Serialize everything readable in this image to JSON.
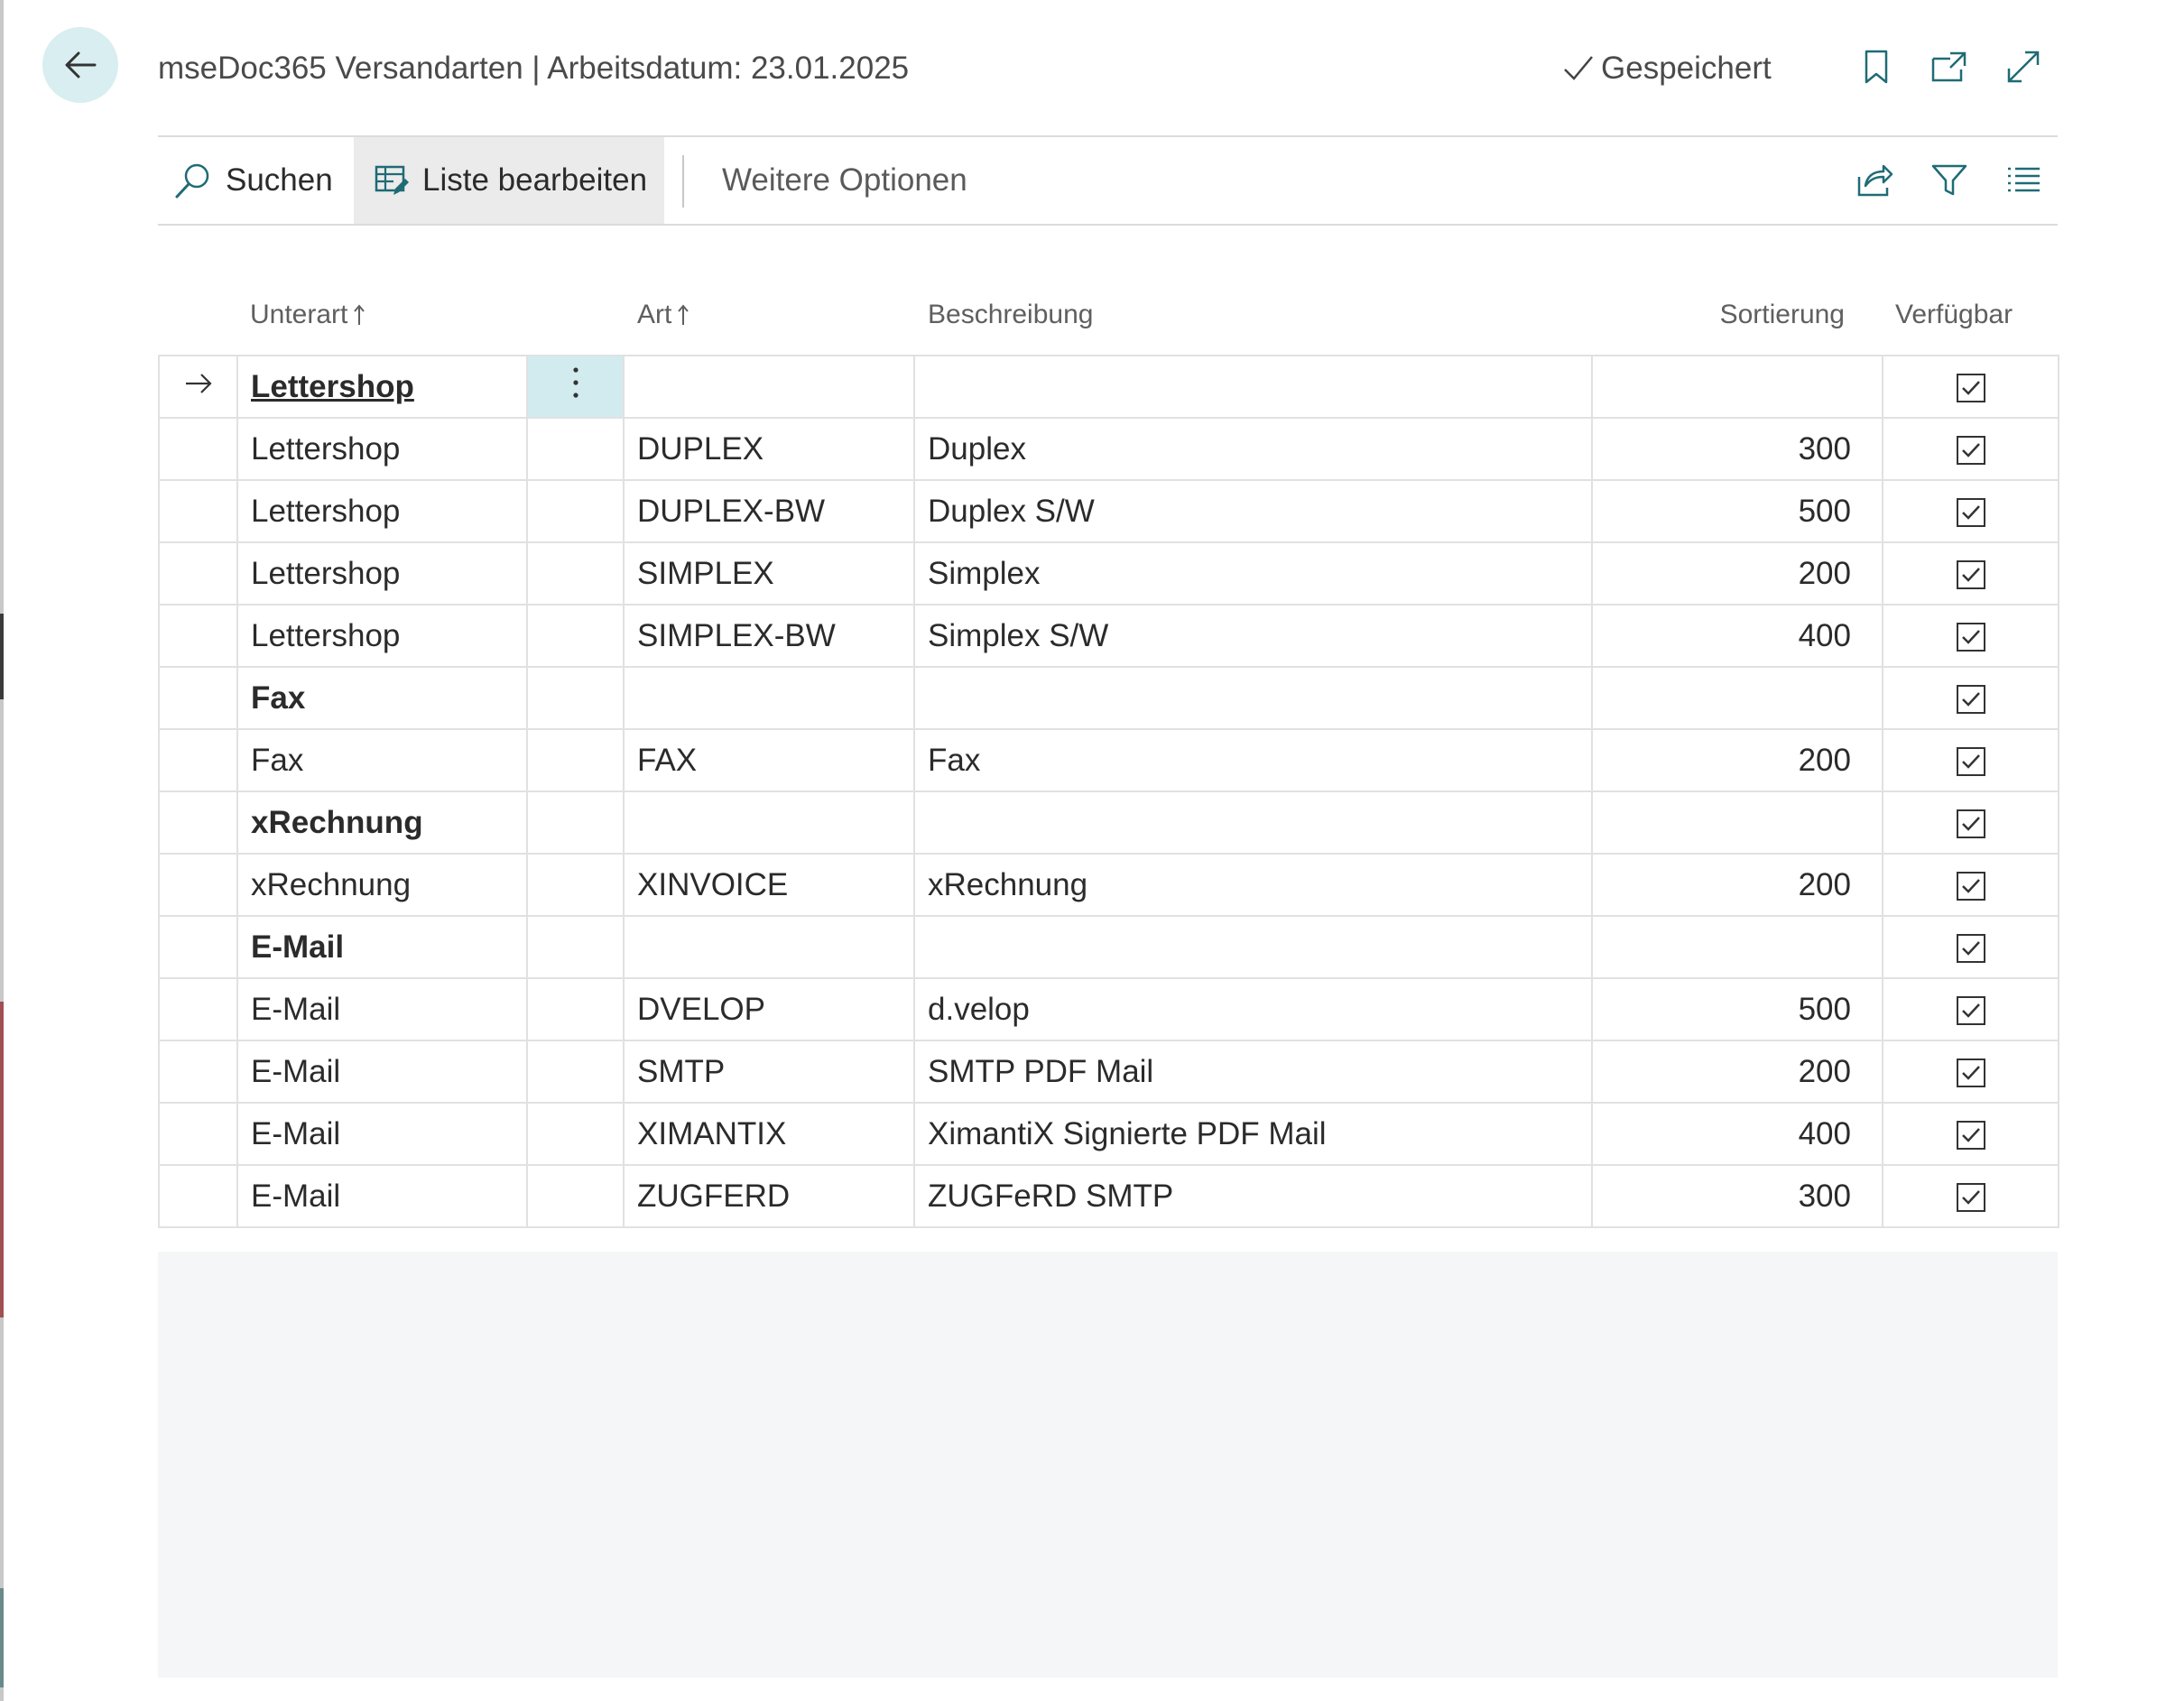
{
  "header": {
    "title": "mseDoc365 Versandarten | Arbeitsdatum: 23.01.2025",
    "saved_label": "Gespeichert",
    "icons": [
      "back-arrow-icon",
      "check-icon",
      "bookmark-icon",
      "open-new-window-icon",
      "expand-icon"
    ]
  },
  "actions": {
    "search_label": "Suchen",
    "edit_list_label": "Liste bearbeiten",
    "more_options_label": "Weitere Optionen",
    "icons": [
      "search-icon",
      "edit-list-icon",
      "share-icon",
      "filter-icon",
      "list-view-icon"
    ]
  },
  "columns": {
    "subtype": "Unterart",
    "type": "Art",
    "description": "Beschreibung",
    "sorting": "Sortierung",
    "available": "Verfügbar"
  },
  "rows": [
    {
      "subtype": "Lettershop",
      "type": "",
      "description": "",
      "sorting": "",
      "available": true,
      "group": true,
      "active": true
    },
    {
      "subtype": "Lettershop",
      "type": "DUPLEX",
      "description": "Duplex",
      "sorting": "300",
      "available": true
    },
    {
      "subtype": "Lettershop",
      "type": "DUPLEX-BW",
      "description": "Duplex S/W",
      "sorting": "500",
      "available": true
    },
    {
      "subtype": "Lettershop",
      "type": "SIMPLEX",
      "description": "Simplex",
      "sorting": "200",
      "available": true
    },
    {
      "subtype": "Lettershop",
      "type": "SIMPLEX-BW",
      "description": "Simplex S/W",
      "sorting": "400",
      "available": true
    },
    {
      "subtype": "Fax",
      "type": "",
      "description": "",
      "sorting": "",
      "available": true,
      "group": true
    },
    {
      "subtype": "Fax",
      "type": "FAX",
      "description": "Fax",
      "sorting": "200",
      "available": true
    },
    {
      "subtype": "xRechnung",
      "type": "",
      "description": "",
      "sorting": "",
      "available": true,
      "group": true
    },
    {
      "subtype": "xRechnung",
      "type": "XINVOICE",
      "description": "xRechnung",
      "sorting": "200",
      "available": true
    },
    {
      "subtype": "E-Mail",
      "type": "",
      "description": "",
      "sorting": "",
      "available": true,
      "group": true
    },
    {
      "subtype": "E-Mail",
      "type": "DVELOP",
      "description": "d.velop",
      "sorting": "500",
      "available": true
    },
    {
      "subtype": "E-Mail",
      "type": "SMTP",
      "description": "SMTP PDF Mail",
      "sorting": "200",
      "available": true
    },
    {
      "subtype": "E-Mail",
      "type": "XIMANTIX",
      "description": "XimantiX Signierte PDF Mail",
      "sorting": "400",
      "available": true
    },
    {
      "subtype": "E-Mail",
      "type": "ZUGFERD",
      "description": "ZUGFeRD SMTP",
      "sorting": "300",
      "available": true
    }
  ],
  "colors": {
    "accent": "#d9eef0",
    "menu_active": "#d2ebef",
    "grid_border": "#e1e1e1",
    "empty_area": "#f5f6f7"
  }
}
